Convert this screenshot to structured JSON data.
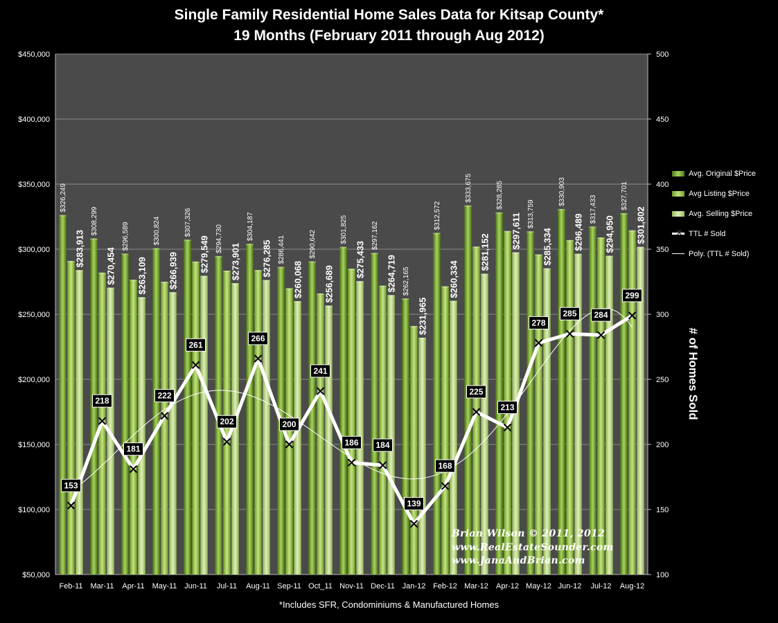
{
  "title_line1": "Single Family Residential Home Sales Data for Kitsap County*",
  "title_line2": "19 Months (February  2011 through Aug 2012)",
  "footnote": "*Includes SFR, Condominiums & Manufactured Homes",
  "credit": [
    "Brian Wilson  © 2011, 2012",
    "www.RealEstateSounder.com",
    "www.JanaAndBrian.com"
  ],
  "y2_title": "# of Homes Sold",
  "colors": {
    "original": "#6f9a2c",
    "listing": "#93bf45",
    "selling": "#b9d77e",
    "line": "#ffffff",
    "plot_bg": "#4a4a4a",
    "grid": "#8c8c8c"
  },
  "chart_data": {
    "type": "bar",
    "categories": [
      "Feb-11",
      "Mar-11",
      "Apr-11",
      "May-11",
      "Jun-11",
      "Jul-11",
      "Aug-11",
      "Sep-11",
      "Oct_11",
      "Nov-11",
      "Dec-11",
      "Jan-12",
      "Feb-12",
      "Mar-12",
      "Apr-12",
      "May-12",
      "Jun-12",
      "Jul-12",
      "Aug-12"
    ],
    "series": [
      {
        "name": "Avg. Original $Price",
        "values": [
          326249,
          308299,
          296589,
          300824,
          307326,
          294730,
          304187,
          286441,
          290642,
          301825,
          297162,
          262165,
          312572,
          333675,
          328285,
          313759,
          330903,
          317433,
          327701
        ],
        "labels": [
          "$326,249",
          "$308,299",
          "$296,589",
          "$300,824",
          "$307,326",
          "$294,730",
          "$304,187",
          "$286,441",
          "$290,642",
          "$301,825",
          "$297,162",
          "$262,165",
          "$312,572",
          "$333,675",
          "$328,285",
          "$313,759",
          "$330,903",
          "$317,433",
          "$327,701"
        ]
      },
      {
        "name": "Avg Listing $Price",
        "values": [
          291000,
          282000,
          276500,
          275000,
          290500,
          283500,
          284000,
          270000,
          266000,
          285000,
          272000,
          241000,
          271500,
          302000,
          314000,
          296000,
          307000,
          309000,
          314500
        ]
      },
      {
        "name": "Avg. Selling $Price",
        "values": [
          283913,
          270454,
          263109,
          266939,
          279549,
          273901,
          276285,
          260068,
          256689,
          275433,
          264719,
          231965,
          260334,
          281152,
          297611,
          285334,
          296489,
          294950,
          301802
        ],
        "labels": [
          "$283,913",
          "$270,454",
          "$263,109",
          "$266,939",
          "$279,549",
          "$273,901",
          "$276,285",
          "$260,068",
          "$256,689",
          "$275,433",
          "$264,719",
          "$231,965",
          "$260,334",
          "$281,152",
          "$297,611",
          "$285,334",
          "$296,489",
          "$294,950",
          "$301,802"
        ]
      }
    ],
    "line_series": {
      "name": "TTL # Sold",
      "axis": "right",
      "values": [
        153,
        218,
        181,
        222,
        261,
        202,
        266,
        200,
        241,
        186,
        184,
        139,
        168,
        225,
        213,
        278,
        285,
        284,
        299
      ]
    },
    "trend_series": {
      "name": "Poly. (TTL # Sold)",
      "axis": "right"
    },
    "y_left": {
      "min": 50000,
      "max": 450000,
      "step": 50000,
      "tick_labels": [
        "$50,000",
        "$100,000",
        "$150,000",
        "$200,000",
        "$250,000",
        "$300,000",
        "$350,000",
        "$400,000",
        "$450,000"
      ]
    },
    "y_right": {
      "min": 100,
      "max": 500,
      "step": 50,
      "tick_labels": [
        "100",
        "150",
        "200",
        "250",
        "300",
        "350",
        "400",
        "450",
        "500"
      ]
    },
    "grid": true,
    "legend_position": "right"
  }
}
